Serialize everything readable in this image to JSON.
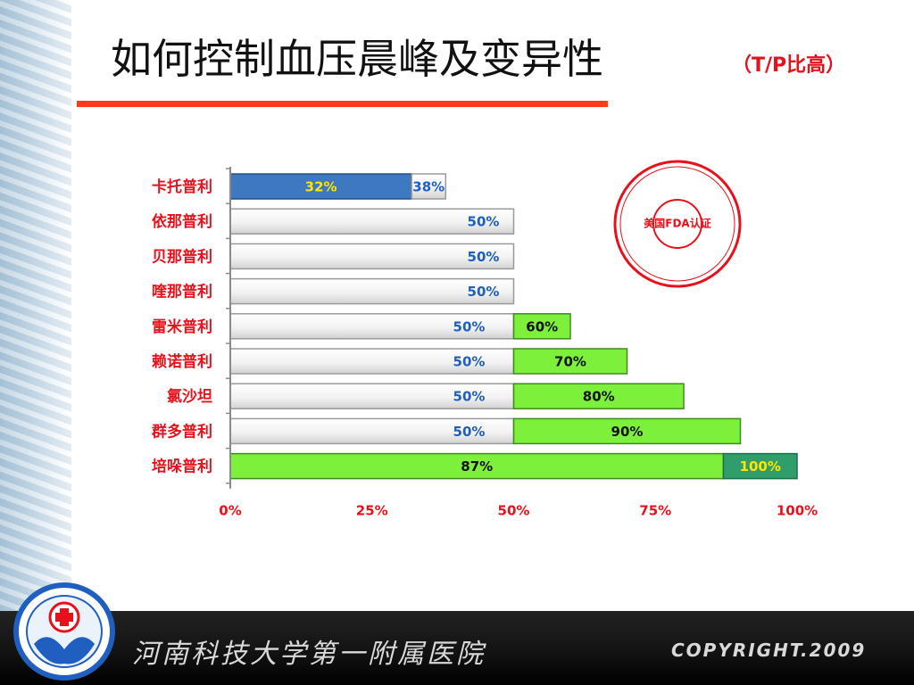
{
  "slide": {
    "title": "如何控制血压晨峰及变异性",
    "subtitle": "（T/P比高）"
  },
  "stamp": {
    "text": "美国FDA认证"
  },
  "footer": {
    "hospital": "河南科技大学第一附属医院",
    "copyright": "COPYRIGHT.2009"
  },
  "colors": {
    "gray_bar": "#f2f2f2",
    "green_bar": "#7cf03a",
    "blue_bar": "#3d78c0",
    "teal_bar": "#2f9e6a",
    "label_red": "#e8111b",
    "value_blue": "#1f5fbf",
    "value_yellow": "#ffe600",
    "title_rule": "#ff3b1a"
  },
  "chart_data": {
    "type": "bar",
    "orientation": "horizontal",
    "stacked": true,
    "xlim": [
      0,
      100
    ],
    "x_ticks": [
      "0%",
      "25%",
      "50%",
      "75%",
      "100%"
    ],
    "categories": [
      "卡托普利",
      "依那普利",
      "贝那普利",
      "喹那普利",
      "雷米普利",
      "赖诺普利",
      "氯沙坦",
      "群多普利",
      "培哚普利"
    ],
    "rows": [
      {
        "segments": [
          {
            "value": 32,
            "label": "32%",
            "style": "blue"
          },
          {
            "value": 6,
            "label": "38%",
            "style": "gray"
          }
        ]
      },
      {
        "segments": [
          {
            "value": 50,
            "label": "50%",
            "style": "gray"
          }
        ]
      },
      {
        "segments": [
          {
            "value": 50,
            "label": "50%",
            "style": "gray"
          }
        ]
      },
      {
        "segments": [
          {
            "value": 50,
            "label": "50%",
            "style": "gray"
          }
        ]
      },
      {
        "segments": [
          {
            "value": 50,
            "label": "50%",
            "style": "gray"
          },
          {
            "value": 10,
            "label": "60%",
            "style": "green"
          }
        ]
      },
      {
        "segments": [
          {
            "value": 50,
            "label": "50%",
            "style": "gray"
          },
          {
            "value": 20,
            "label": "70%",
            "style": "green"
          }
        ]
      },
      {
        "segments": [
          {
            "value": 50,
            "label": "50%",
            "style": "gray"
          },
          {
            "value": 30,
            "label": "80%",
            "style": "green"
          }
        ]
      },
      {
        "segments": [
          {
            "value": 50,
            "label": "50%",
            "style": "gray"
          },
          {
            "value": 40,
            "label": "90%",
            "style": "green"
          }
        ]
      },
      {
        "segments": [
          {
            "value": 87,
            "label": "87%",
            "style": "green"
          },
          {
            "value": 13,
            "label": "100%",
            "style": "teal"
          }
        ]
      }
    ]
  }
}
